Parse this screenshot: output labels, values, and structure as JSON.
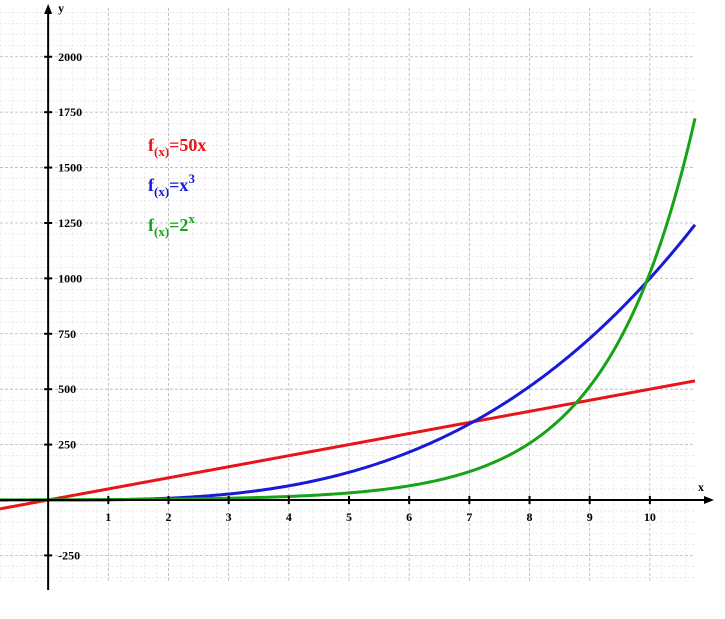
{
  "chart_data": {
    "type": "line",
    "xlabel": "x",
    "ylabel": "y",
    "xlim": [
      -0.8,
      10.75
    ],
    "ylim": [
      -370,
      2220
    ],
    "grid": true,
    "x_ticks": [
      1,
      2,
      3,
      4,
      5,
      6,
      7,
      8,
      9,
      10
    ],
    "y_ticks": [
      -250,
      250,
      500,
      750,
      1000,
      1250,
      1500,
      1750,
      2000
    ],
    "x_tick_labels": [
      "1",
      "2",
      "3",
      "4",
      "5",
      "6",
      "7",
      "8",
      "9",
      "10"
    ],
    "y_tick_labels": [
      "-250",
      "250",
      "500",
      "750",
      "1000",
      "1250",
      "1500",
      "1750",
      "2000"
    ],
    "series": [
      {
        "name": "f(x)=50x",
        "legend": {
          "main": "f",
          "sub": "(x)",
          "rest": "=50x",
          "sup": ""
        },
        "color": "#e8141a",
        "x": [
          -0.8,
          10.75
        ],
        "y": [
          -40,
          537.5
        ]
      },
      {
        "name": "f(x)=x^3",
        "legend": {
          "main": "f",
          "sub": "(x)",
          "rest": "=x",
          "sup": "3"
        },
        "color": "#1a1ad6",
        "x": [
          -0.8,
          0,
          1,
          2,
          3,
          4,
          5,
          6,
          7,
          8,
          9,
          10,
          10.75
        ],
        "y": [
          -0.5,
          0,
          1,
          8,
          27,
          64,
          125,
          216,
          343,
          512,
          729,
          1000,
          1242
        ]
      },
      {
        "name": "f(x)=2^x",
        "legend": {
          "main": "f",
          "sub": "(x)",
          "rest": "=2",
          "sup": "x"
        },
        "color": "#17a317",
        "x": [
          -0.8,
          0,
          1,
          2,
          3,
          4,
          5,
          6,
          7,
          8,
          9,
          10,
          10.75
        ],
        "y": [
          0.6,
          1,
          2,
          4,
          8,
          16,
          32,
          64,
          128,
          256,
          512,
          1024,
          1722
        ]
      }
    ]
  }
}
